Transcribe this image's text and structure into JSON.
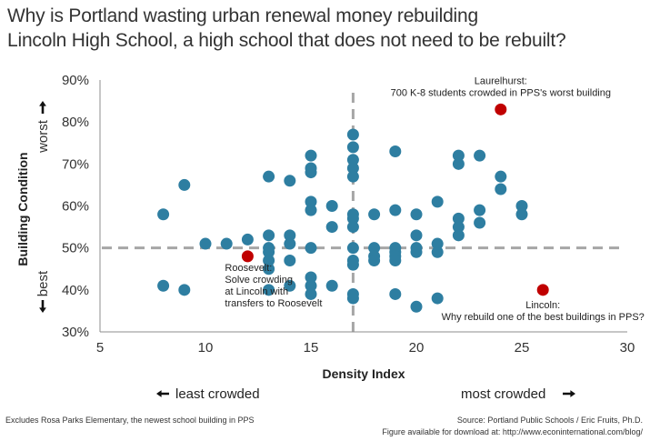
{
  "title_lines": [
    "Why is Portland wasting urban renewal money rebuilding",
    "Lincoln High School, a high school that does not need to be rebuilt?"
  ],
  "footer": {
    "left": "Excludes Rosa Parks Elementary, the newest school building in PPS",
    "source": "Source: Portland Public Schools / Eric Fruits, Ph.D.",
    "download": "Figure available for download at: http://www.econinternational.com/blog/"
  },
  "direction_labels": {
    "left": "least crowded",
    "right": "most crowded",
    "y_top": "worst",
    "y_bottom": "best"
  },
  "colors": {
    "points": "#2e7ea1",
    "highlight": "#c00000",
    "reference": "#a6a6a6"
  },
  "chart_data": {
    "type": "scatter",
    "xlabel": "Density Index",
    "ylabel": "Building Condition",
    "xlim": [
      5,
      30
    ],
    "ylim": [
      30,
      90
    ],
    "x_ticks": [
      {
        "value": 5,
        "label": "5"
      },
      {
        "value": 10,
        "label": "10"
      },
      {
        "value": 15,
        "label": "15"
      },
      {
        "value": 20,
        "label": "20"
      },
      {
        "value": 25,
        "label": "25"
      },
      {
        "value": 30,
        "label": "30"
      }
    ],
    "y_ticks": [
      {
        "value": 30,
        "label": "30%"
      },
      {
        "value": 40,
        "label": "40%"
      },
      {
        "value": 50,
        "label": "50%"
      },
      {
        "value": 60,
        "label": "60%"
      },
      {
        "value": 70,
        "label": "70%"
      },
      {
        "value": 80,
        "label": "80%"
      },
      {
        "value": 90,
        "label": "90%"
      }
    ],
    "reference_lines": {
      "x": 17,
      "y": 50
    },
    "grid": false,
    "legend": "none",
    "points": [
      {
        "x": 8,
        "y": 58
      },
      {
        "x": 8,
        "y": 41
      },
      {
        "x": 9,
        "y": 65
      },
      {
        "x": 9,
        "y": 40
      },
      {
        "x": 10,
        "y": 51
      },
      {
        "x": 11,
        "y": 51
      },
      {
        "x": 12,
        "y": 52
      },
      {
        "x": 13,
        "y": 67
      },
      {
        "x": 13,
        "y": 53
      },
      {
        "x": 13,
        "y": 50
      },
      {
        "x": 13,
        "y": 49
      },
      {
        "x": 13,
        "y": 47
      },
      {
        "x": 13,
        "y": 45
      },
      {
        "x": 13,
        "y": 40
      },
      {
        "x": 14,
        "y": 66
      },
      {
        "x": 14,
        "y": 53
      },
      {
        "x": 14,
        "y": 51
      },
      {
        "x": 14,
        "y": 47
      },
      {
        "x": 14,
        "y": 41
      },
      {
        "x": 15,
        "y": 72
      },
      {
        "x": 15,
        "y": 69
      },
      {
        "x": 15,
        "y": 68
      },
      {
        "x": 15,
        "y": 61
      },
      {
        "x": 15,
        "y": 59
      },
      {
        "x": 15,
        "y": 50
      },
      {
        "x": 15,
        "y": 43
      },
      {
        "x": 15,
        "y": 41
      },
      {
        "x": 15,
        "y": 39
      },
      {
        "x": 16,
        "y": 60
      },
      {
        "x": 16,
        "y": 55
      },
      {
        "x": 16,
        "y": 41
      },
      {
        "x": 17,
        "y": 77
      },
      {
        "x": 17,
        "y": 74
      },
      {
        "x": 17,
        "y": 71
      },
      {
        "x": 17,
        "y": 69
      },
      {
        "x": 17,
        "y": 67
      },
      {
        "x": 17,
        "y": 58
      },
      {
        "x": 17,
        "y": 57
      },
      {
        "x": 17,
        "y": 55
      },
      {
        "x": 17,
        "y": 50
      },
      {
        "x": 17,
        "y": 47
      },
      {
        "x": 17,
        "y": 46
      },
      {
        "x": 17,
        "y": 39
      },
      {
        "x": 17,
        "y": 38
      },
      {
        "x": 18,
        "y": 58
      },
      {
        "x": 18,
        "y": 50
      },
      {
        "x": 18,
        "y": 48
      },
      {
        "x": 18,
        "y": 47
      },
      {
        "x": 19,
        "y": 73
      },
      {
        "x": 19,
        "y": 59
      },
      {
        "x": 19,
        "y": 50
      },
      {
        "x": 19,
        "y": 49
      },
      {
        "x": 19,
        "y": 48
      },
      {
        "x": 19,
        "y": 47
      },
      {
        "x": 19,
        "y": 39
      },
      {
        "x": 20,
        "y": 58
      },
      {
        "x": 20,
        "y": 53
      },
      {
        "x": 20,
        "y": 50
      },
      {
        "x": 20,
        "y": 49
      },
      {
        "x": 20,
        "y": 36
      },
      {
        "x": 21,
        "y": 61
      },
      {
        "x": 21,
        "y": 51
      },
      {
        "x": 21,
        "y": 49
      },
      {
        "x": 21,
        "y": 38
      },
      {
        "x": 22,
        "y": 72
      },
      {
        "x": 22,
        "y": 70
      },
      {
        "x": 22,
        "y": 57
      },
      {
        "x": 22,
        "y": 55
      },
      {
        "x": 22,
        "y": 53
      },
      {
        "x": 23,
        "y": 72
      },
      {
        "x": 23,
        "y": 59
      },
      {
        "x": 23,
        "y": 56
      },
      {
        "x": 24,
        "y": 67
      },
      {
        "x": 24,
        "y": 64
      },
      {
        "x": 25,
        "y": 60
      },
      {
        "x": 25,
        "y": 58
      }
    ],
    "highlighted": [
      {
        "x": 24,
        "y": 83,
        "label": [
          "Laurelhurst:",
          "700 K-8 students crowded in PPS's worst building"
        ],
        "anchor": "middle"
      },
      {
        "x": 12,
        "y": 48,
        "label": [
          "Roosevelt:",
          "Solve crowding",
          "at Lincoln with",
          "transfers to Roosevelt"
        ],
        "anchor": "start"
      },
      {
        "x": 26,
        "y": 40,
        "label": [
          "Lincoln:",
          "Why rebuild one of the best buildings in PPS?"
        ],
        "anchor": "middle"
      }
    ]
  }
}
